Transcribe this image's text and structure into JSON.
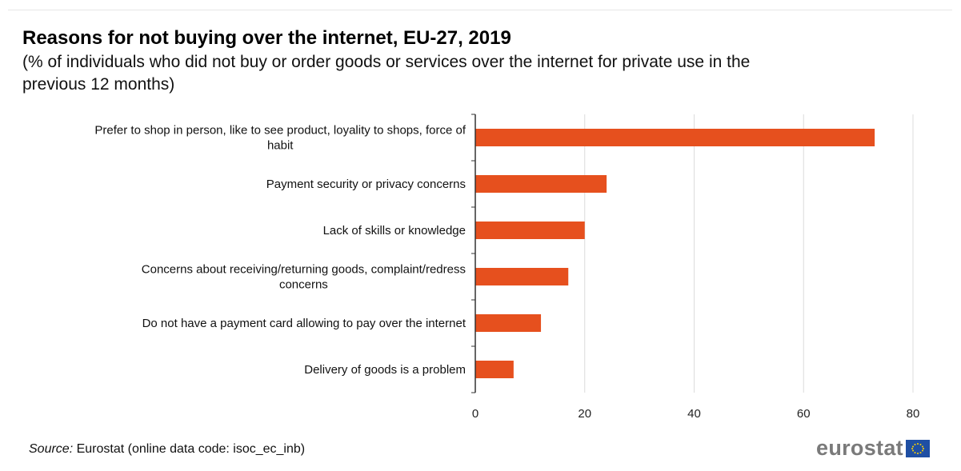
{
  "title": "Reasons for not buying over the internet, EU-27, 2019",
  "subtitle": "(% of individuals who did not buy or order goods or services over the internet for private use in the previous 12 months)",
  "source_label": "Source:",
  "source_text": "Eurostat (online data code: isoc_ec_inb)",
  "logo_text": "eurostat",
  "colors": {
    "bar": "#e6501e",
    "axis": "#333333",
    "grid": "#dcdcdc",
    "flag": "#1f4fa3",
    "flag_stars": "#ffd400"
  },
  "chart_data": {
    "type": "bar",
    "orientation": "horizontal",
    "title": "Reasons for not buying over the internet, EU-27, 2019",
    "subtitle": "(% of individuals who did not buy or order goods or services over the internet for private use in the previous 12 months)",
    "categories": [
      [
        "Prefer to shop in person, like to see product, loyality to shops, force of",
        "habit"
      ],
      [
        "Payment security or privacy concerns"
      ],
      [
        "Lack of skills or knowledge"
      ],
      [
        "Concerns about receiving/returning goods, complaint/redress",
        "concerns"
      ],
      [
        "Do not have a payment card allowing to pay over the internet"
      ],
      [
        "Delivery of goods is a problem"
      ]
    ],
    "values": [
      73,
      24,
      20,
      17,
      12,
      7
    ],
    "xlim": [
      0,
      80
    ],
    "xticks": [
      0,
      20,
      40,
      60,
      80
    ],
    "grid": true,
    "xlabel": "",
    "ylabel": ""
  }
}
